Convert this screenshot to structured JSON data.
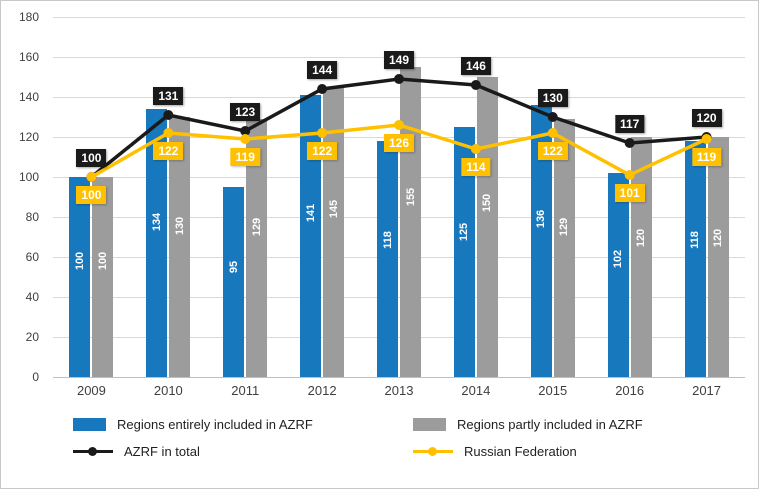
{
  "chart_data": {
    "type": "combo",
    "title": "",
    "xlabel": "",
    "ylabel": "",
    "categories": [
      "2009",
      "2010",
      "2011",
      "2012",
      "2013",
      "2014",
      "2015",
      "2016",
      "2017"
    ],
    "series": [
      {
        "name": "Regions entirely included in AZRF",
        "type": "bar",
        "color": "#1878BE",
        "values": [
          100,
          134,
          95,
          141,
          118,
          125,
          136,
          102,
          118
        ]
      },
      {
        "name": "Regions partly included in AZRF",
        "type": "bar",
        "color": "#9C9C9C",
        "values": [
          100,
          130,
          129,
          145,
          155,
          150,
          129,
          120,
          120
        ]
      },
      {
        "name": "AZRF in total",
        "type": "line",
        "color": "#1A1A1A",
        "values": [
          100,
          131,
          123,
          144,
          149,
          146,
          130,
          117,
          120
        ]
      },
      {
        "name": "Russian Federation",
        "type": "line",
        "color": "#FFC000",
        "values": [
          100,
          122,
          119,
          122,
          126,
          114,
          122,
          101,
          119
        ]
      }
    ],
    "ylim": [
      0,
      180
    ],
    "ytick_step": 20,
    "yticks": [
      0,
      20,
      40,
      60,
      80,
      100,
      120,
      140,
      160,
      180
    ],
    "grid": true,
    "legend_position": "bottom"
  },
  "colors": {
    "gridline": "#D9D9D9",
    "axis_text": "#3F3F3F",
    "bar_value_label": "#FFFFFF",
    "frame_border": "#C8C8C8",
    "background": "#FFFFFF"
  }
}
